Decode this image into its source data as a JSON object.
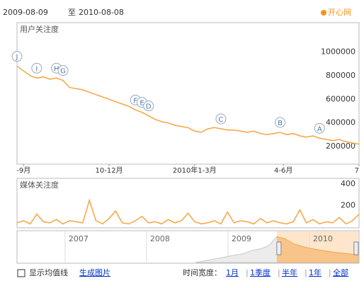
{
  "header": {
    "start": "2009-08-09",
    "sep": "至",
    "end": "2010-08-08",
    "keyword": "开心网",
    "keyword_color": "#f7931e"
  },
  "chart_data": [
    {
      "type": "line",
      "title": "用户关注度",
      "color": "#f7a541",
      "values": [
        880000,
        840000,
        800000,
        780000,
        790000,
        770000,
        780000,
        760000,
        700000,
        690000,
        680000,
        660000,
        640000,
        620000,
        600000,
        580000,
        560000,
        540000,
        510000,
        490000,
        460000,
        430000,
        410000,
        400000,
        380000,
        370000,
        360000,
        330000,
        320000,
        350000,
        360000,
        350000,
        340000,
        340000,
        330000,
        320000,
        330000,
        310000,
        300000,
        310000,
        320000,
        300000,
        310000,
        290000,
        280000,
        290000,
        270000,
        260000,
        250000,
        260000,
        240000,
        230000,
        220000
      ],
      "xlim": [
        0,
        52
      ],
      "xticks": [
        {
          "value": 1,
          "label": "-9月"
        },
        {
          "value": 14,
          "label": "10-12月"
        },
        {
          "value": 27,
          "label": "2010年1-3月"
        },
        {
          "value": 40.5,
          "label": "4-6月"
        },
        {
          "value": 52,
          "label": "7"
        }
      ],
      "ylim": [
        50000,
        1250000
      ],
      "yticks": [
        200000,
        400000,
        600000,
        800000,
        1000000
      ],
      "annotations": [
        {
          "label": "J",
          "at": 0
        },
        {
          "label": "I",
          "at": 3
        },
        {
          "label": "H",
          "at": 6
        },
        {
          "label": "G",
          "at": 7
        },
        {
          "label": "F",
          "at": 18
        },
        {
          "label": "E",
          "at": 19
        },
        {
          "label": "D",
          "at": 20
        },
        {
          "label": "C",
          "at": 31
        },
        {
          "label": "B",
          "at": 40
        },
        {
          "label": "A",
          "at": 46
        }
      ]
    },
    {
      "type": "line",
      "title": "媒体关注度",
      "color": "#f7a541",
      "values": [
        40,
        60,
        30,
        120,
        50,
        40,
        70,
        30,
        60,
        50,
        40,
        250,
        60,
        30,
        80,
        150,
        40,
        30,
        60,
        100,
        40,
        50,
        30,
        70,
        40,
        60,
        130,
        50,
        30,
        40,
        60,
        30,
        140,
        40,
        60,
        50,
        30,
        80,
        40,
        60,
        40,
        30,
        50,
        160,
        40,
        70,
        30,
        50,
        40,
        90,
        30,
        60,
        120
      ],
      "xlim": [
        0,
        52
      ],
      "ylim": [
        0,
        440
      ],
      "yticks": [
        200,
        400
      ]
    },
    {
      "type": "area",
      "x": [
        2008.6,
        2008.7,
        2008.8,
        2008.9,
        2009.0,
        2009.1,
        2009.2,
        2009.3,
        2009.4,
        2009.5,
        2009.6,
        2009.7,
        2009.8,
        2009.9,
        2010.0,
        2010.1,
        2010.2,
        2010.3,
        2010.4,
        2010.5,
        2010.6
      ],
      "values": [
        0,
        50000,
        100000,
        150000,
        200000,
        250000,
        300000,
        400000,
        450000,
        550000,
        850000,
        780000,
        620000,
        540000,
        470000,
        420000,
        380000,
        340000,
        310000,
        280000,
        250000
      ],
      "xlim": [
        2006.41,
        2010.61
      ],
      "ylim": [
        0,
        1000000
      ],
      "xticks": [
        2007,
        2008,
        2009,
        2010
      ],
      "selection": [
        2009.6,
        2010.6
      ],
      "color": "#f7a541",
      "muted_color": "#c8c8c8"
    }
  ],
  "footer": {
    "checkbox": "显示均值线",
    "image_link": "生成图片",
    "width_label": "时间宽度：",
    "options": [
      "1月",
      "1季度",
      "半年",
      "1年",
      "全部"
    ]
  }
}
